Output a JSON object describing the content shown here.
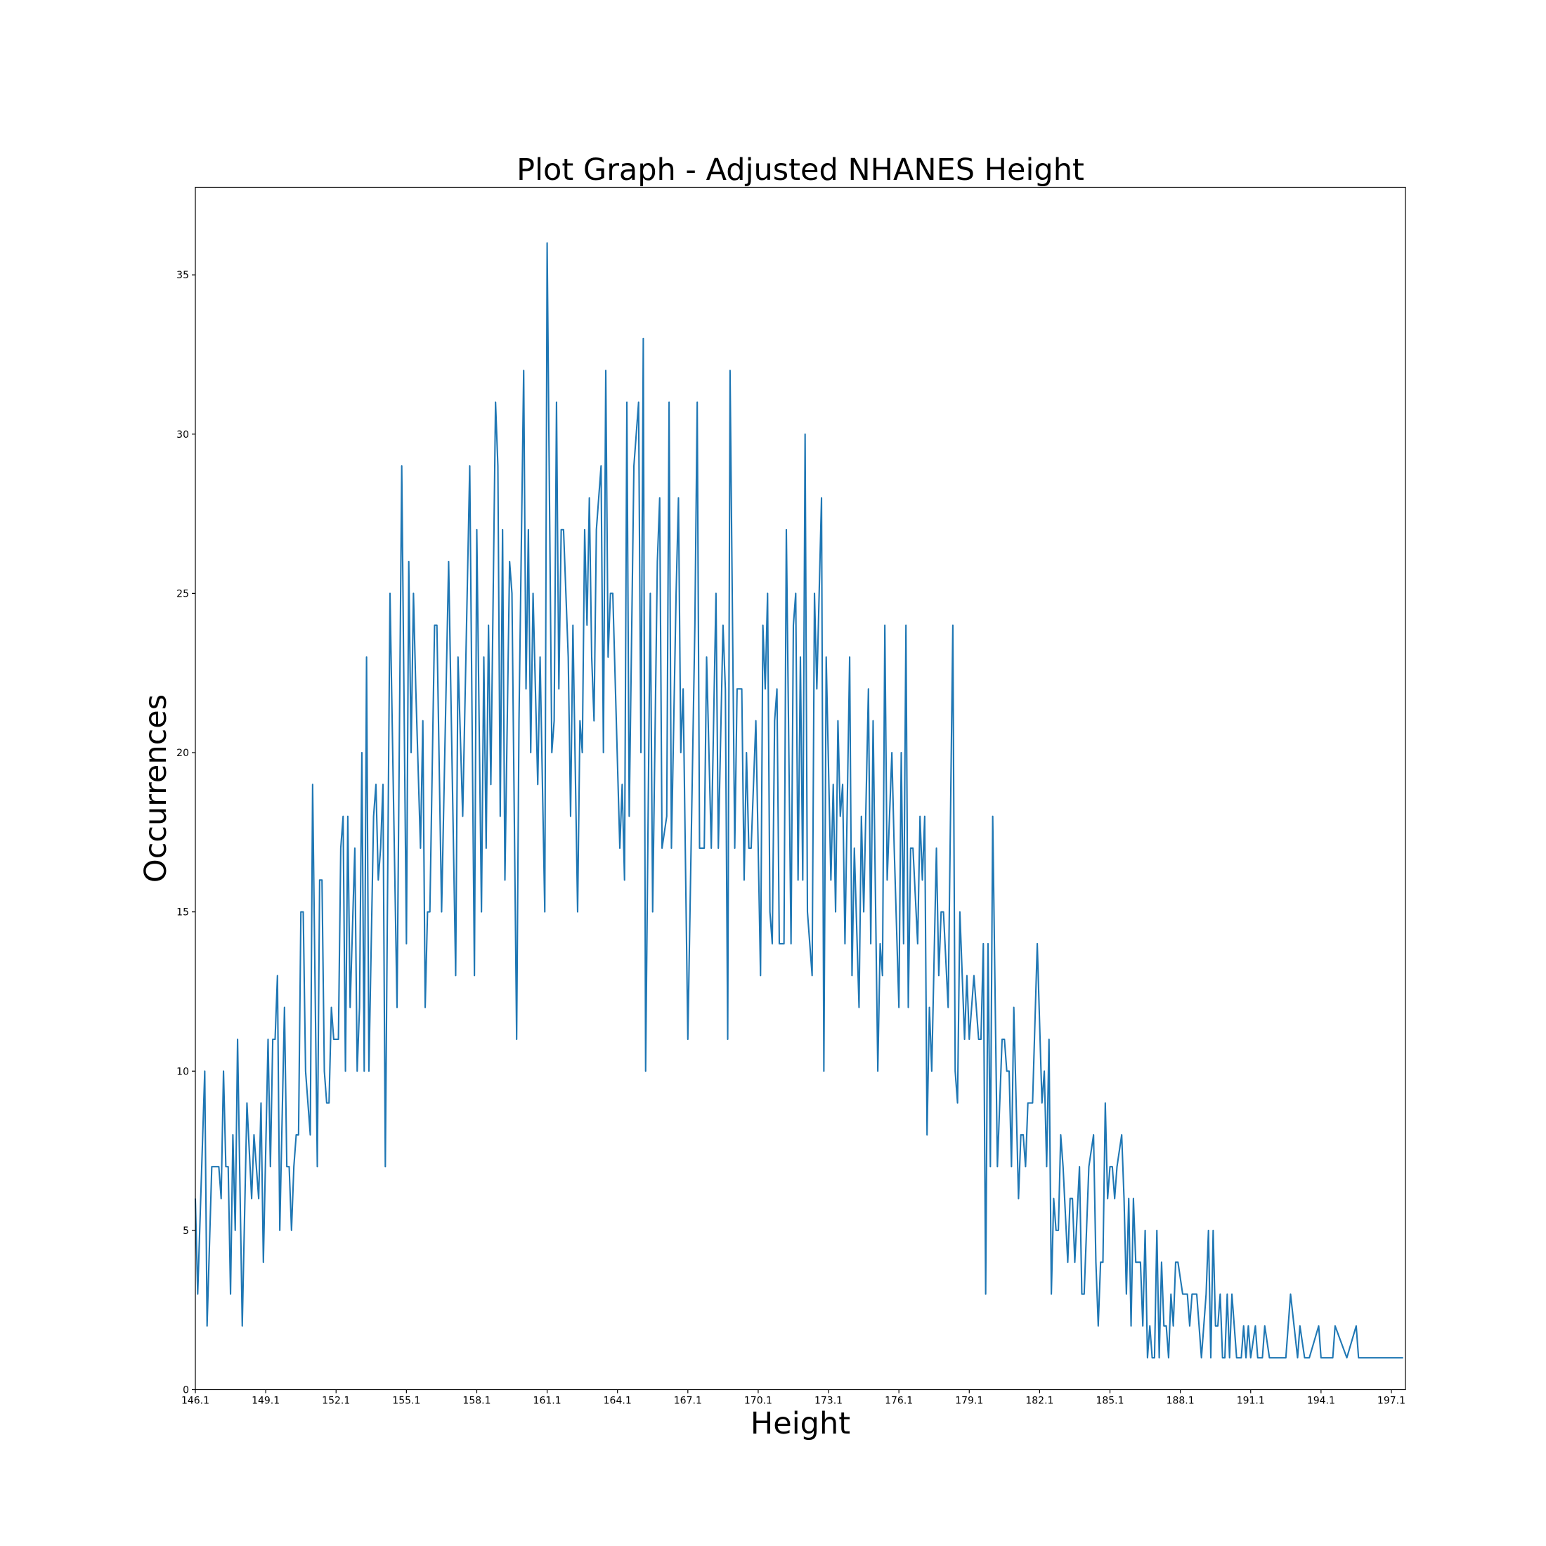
{
  "chart_data": {
    "type": "line",
    "title": "Plot Graph - Adjusted NHANES Height",
    "xlabel": "Height",
    "ylabel": "Occurrences",
    "color": "#1f77b4",
    "xlim": [
      146.1,
      197.7
    ],
    "ylim": [
      0,
      37.75
    ],
    "xticks": [
      146.1,
      149.1,
      152.1,
      155.1,
      158.1,
      161.1,
      164.1,
      167.1,
      170.1,
      173.1,
      176.1,
      179.1,
      182.1,
      185.1,
      188.1,
      191.1,
      194.1,
      197.1
    ],
    "yticks": [
      0,
      5,
      10,
      15,
      20,
      25,
      30,
      35
    ],
    "x": [
      146.1,
      146.2,
      146.5,
      146.6,
      146.8,
      147.1,
      147.2,
      147.3,
      147.4,
      147.5,
      147.6,
      147.7,
      147.8,
      147.9,
      148.1,
      148.3,
      148.5,
      148.6,
      148.8,
      148.9,
      149.0,
      149.2,
      149.3,
      149.4,
      149.5,
      149.6,
      149.7,
      149.9,
      150.0,
      150.1,
      150.2,
      150.3,
      150.4,
      150.5,
      150.6,
      150.7,
      150.8,
      151.0,
      151.1,
      151.3,
      151.4,
      151.5,
      151.6,
      151.7,
      151.8,
      151.9,
      152.0,
      152.2,
      152.3,
      152.4,
      152.5,
      152.6,
      152.7,
      152.9,
      153.0,
      153.1,
      153.2,
      153.3,
      153.4,
      153.5,
      153.7,
      153.8,
      153.9,
      154.0,
      154.1,
      154.2,
      154.4,
      154.7,
      154.9,
      155.1,
      155.2,
      155.3,
      155.4,
      155.5,
      155.7,
      155.8,
      155.9,
      156.0,
      156.1,
      156.3,
      156.4,
      156.6,
      156.9,
      157.2,
      157.3,
      157.5,
      157.8,
      158.0,
      158.1,
      158.3,
      158.4,
      158.5,
      158.6,
      158.7,
      158.9,
      159.0,
      159.1,
      159.2,
      159.3,
      159.5,
      159.6,
      159.8,
      159.9,
      160.1,
      160.2,
      160.3,
      160.4,
      160.5,
      160.7,
      160.8,
      161.0,
      161.1,
      161.3,
      161.4,
      161.5,
      161.6,
      161.7,
      161.8,
      162.0,
      162.1,
      162.2,
      162.4,
      162.5,
      162.6,
      162.7,
      162.8,
      162.9,
      163.0,
      163.1,
      163.2,
      163.4,
      163.5,
      163.6,
      163.7,
      163.8,
      163.9,
      164.2,
      164.3,
      164.4,
      164.5,
      164.6,
      164.8,
      165.0,
      165.1,
      165.2,
      165.3,
      165.5,
      165.6,
      165.8,
      165.9,
      166.0,
      166.2,
      166.3,
      166.4,
      166.6,
      166.7,
      166.8,
      166.9,
      167.1,
      167.4,
      167.5,
      167.6,
      167.8,
      167.9,
      168.1,
      168.3,
      168.4,
      168.6,
      168.7,
      168.8,
      168.9,
      169.1,
      169.2,
      169.4,
      169.5,
      169.6,
      169.7,
      169.8,
      170.0,
      170.2,
      170.3,
      170.4,
      170.5,
      170.6,
      170.7,
      170.8,
      170.9,
      171.0,
      171.2,
      171.3,
      171.5,
      171.6,
      171.7,
      171.8,
      171.9,
      172.0,
      172.1,
      172.2,
      172.4,
      172.5,
      172.6,
      172.8,
      172.9,
      173.0,
      173.2,
      173.3,
      173.4,
      173.5,
      173.6,
      173.7,
      173.8,
      174.0,
      174.1,
      174.2,
      174.4,
      174.5,
      174.6,
      174.8,
      174.9,
      175.0,
      175.2,
      175.3,
      175.4,
      175.5,
      175.6,
      175.8,
      175.9,
      176.1,
      176.2,
      176.3,
      176.4,
      176.5,
      176.6,
      176.7,
      176.9,
      177.0,
      177.1,
      177.2,
      177.3,
      177.4,
      177.5,
      177.7,
      177.8,
      177.9,
      178.0,
      178.2,
      178.4,
      178.5,
      178.6,
      178.7,
      178.9,
      179.0,
      179.1,
      179.3,
      179.5,
      179.6,
      179.7,
      179.8,
      179.9,
      180.0,
      180.1,
      180.3,
      180.5,
      180.6,
      180.7,
      180.8,
      180.9,
      181.0,
      181.2,
      181.3,
      181.4,
      181.5,
      181.6,
      181.8,
      182.0,
      182.2,
      182.3,
      182.4,
      182.5,
      182.6,
      182.7,
      182.8,
      182.9,
      183.0,
      183.1,
      183.3,
      183.4,
      183.5,
      183.6,
      183.8,
      183.9,
      184.0,
      184.2,
      184.4,
      184.5,
      184.6,
      184.7,
      184.8,
      184.9,
      185.0,
      185.1,
      185.2,
      185.3,
      185.4,
      185.6,
      185.7,
      185.8,
      185.9,
      186.0,
      186.1,
      186.2,
      186.4,
      186.5,
      186.6,
      186.7,
      186.8,
      186.9,
      187.0,
      187.1,
      187.2,
      187.3,
      187.4,
      187.5,
      187.6,
      187.7,
      187.8,
      187.9,
      188.0,
      188.2,
      188.4,
      188.5,
      188.6,
      188.8,
      189.0,
      189.2,
      189.3,
      189.4,
      189.5,
      189.6,
      189.7,
      189.8,
      189.9,
      190.0,
      190.1,
      190.2,
      190.3,
      190.5,
      190.7,
      190.8,
      190.9,
      191.0,
      191.1,
      191.3,
      191.4,
      191.6,
      191.7,
      191.9,
      192.3,
      192.6,
      192.8,
      193.1,
      193.2,
      193.4,
      193.6,
      194.0,
      194.1,
      194.6,
      194.7,
      195.2,
      195.6,
      195.7,
      197.6
    ],
    "values": [
      6,
      3,
      10,
      2,
      7,
      7,
      6,
      10,
      7,
      7,
      3,
      8,
      5,
      11,
      2,
      9,
      6,
      8,
      6,
      9,
      4,
      11,
      7,
      11,
      11,
      13,
      5,
      12,
      7,
      7,
      5,
      7,
      8,
      8,
      15,
      15,
      10,
      8,
      19,
      7,
      16,
      16,
      10,
      9,
      9,
      12,
      11,
      11,
      17,
      18,
      10,
      18,
      12,
      17,
      10,
      12,
      20,
      10,
      23,
      10,
      18,
      19,
      16,
      17,
      19,
      7,
      25,
      12,
      29,
      14,
      26,
      20,
      25,
      22,
      17,
      21,
      12,
      15,
      15,
      24,
      24,
      15,
      26,
      13,
      23,
      18,
      29,
      13,
      27,
      15,
      23,
      17,
      24,
      19,
      31,
      29,
      18,
      27,
      16,
      26,
      25,
      11,
      21,
      32,
      22,
      27,
      20,
      25,
      19,
      23,
      15,
      36,
      20,
      21,
      31,
      22,
      27,
      27,
      23,
      18,
      24,
      15,
      21,
      20,
      27,
      24,
      28,
      23,
      21,
      27,
      29,
      20,
      32,
      23,
      25,
      25,
      17,
      19,
      16,
      31,
      18,
      29,
      31,
      20,
      33,
      10,
      25,
      15,
      26,
      28,
      17,
      18,
      31,
      17,
      25,
      28,
      20,
      22,
      11,
      24,
      31,
      17,
      17,
      23,
      17,
      25,
      17,
      24,
      22,
      11,
      32,
      17,
      22,
      22,
      16,
      20,
      17,
      17,
      21,
      13,
      24,
      22,
      25,
      15,
      14,
      21,
      22,
      14,
      14,
      27,
      14,
      24,
      25,
      16,
      23,
      16,
      30,
      15,
      13,
      25,
      22,
      28,
      10,
      23,
      16,
      19,
      15,
      21,
      18,
      19,
      14,
      23,
      13,
      17,
      12,
      18,
      15,
      22,
      14,
      21,
      10,
      14,
      13,
      24,
      16,
      20,
      17,
      12,
      20,
      14,
      24,
      12,
      17,
      17,
      14,
      18,
      16,
      18,
      8,
      12,
      10,
      17,
      13,
      15,
      15,
      12,
      24,
      10,
      9,
      15,
      11,
      13,
      11,
      13,
      11,
      11,
      14,
      3,
      14,
      7,
      18,
      7,
      11,
      11,
      10,
      10,
      7,
      12,
      6,
      8,
      8,
      7,
      9,
      9,
      14,
      9,
      10,
      7,
      11,
      3,
      6,
      5,
      5,
      8,
      7,
      4,
      6,
      6,
      4,
      7,
      3,
      3,
      7,
      8,
      4,
      2,
      4,
      4,
      9,
      6,
      7,
      7,
      6,
      7,
      8,
      6,
      3,
      6,
      2,
      6,
      4,
      4,
      2,
      5,
      1,
      2,
      1,
      1,
      5,
      1,
      4,
      2,
      2,
      1,
      3,
      2,
      4,
      4,
      3,
      3,
      2,
      3,
      3,
      1,
      3,
      5,
      1,
      5,
      2,
      2,
      3,
      1,
      1,
      3,
      1,
      3,
      1,
      1,
      2,
      1,
      2,
      1,
      2,
      1,
      1,
      2,
      1,
      1,
      1,
      3,
      1,
      2,
      1,
      1,
      2,
      1,
      1,
      2,
      1,
      2,
      1,
      1
    ]
  }
}
